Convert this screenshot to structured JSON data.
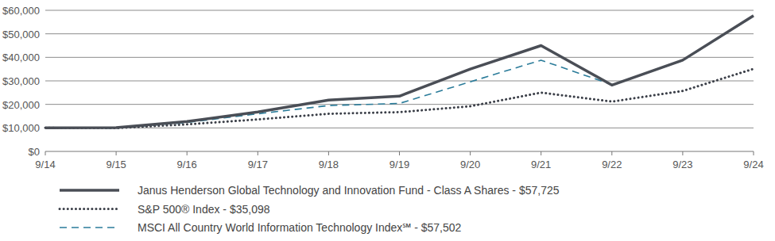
{
  "chart_data": {
    "type": "line",
    "categories": [
      "9/14",
      "9/15",
      "9/16",
      "9/17",
      "9/18",
      "9/19",
      "9/20",
      "9/21",
      "9/22",
      "9/23",
      "9/24"
    ],
    "series": [
      {
        "name": "Janus Henderson Global Technology and Innovation Fund - Class A Shares - $57,725",
        "color": "#4a4e56",
        "line_style": "solid",
        "values": [
          10000,
          10100,
          12700,
          16800,
          21800,
          23500,
          35000,
          45000,
          28200,
          38800,
          57725
        ]
      },
      {
        "name": "S&P 500® Index - $35,098",
        "color": "#3b3f48",
        "line_style": "dotted",
        "values": [
          10000,
          9900,
          11500,
          13600,
          16000,
          16700,
          19200,
          25000,
          21200,
          25700,
          35098
        ]
      },
      {
        "name": "MSCI All Country World Information Technology Index℠ - $57,502",
        "color": "#2b7c9a",
        "line_style": "dashed",
        "values": [
          10000,
          9900,
          12300,
          16000,
          19500,
          20400,
          29600,
          38800,
          28400,
          38600,
          57502
        ]
      }
    ],
    "ylim": [
      0,
      60000
    ],
    "yticks": [
      {
        "value": 0,
        "label": "$0"
      },
      {
        "value": 10000,
        "label": "$10,000"
      },
      {
        "value": 20000,
        "label": "$20,000"
      },
      {
        "value": 30000,
        "label": "$30,000"
      },
      {
        "value": 40000,
        "label": "$40,000"
      },
      {
        "value": 50000,
        "label": "$50,000"
      },
      {
        "value": 60000,
        "label": "$60,000"
      }
    ],
    "grid": true,
    "legend": "bottom"
  }
}
